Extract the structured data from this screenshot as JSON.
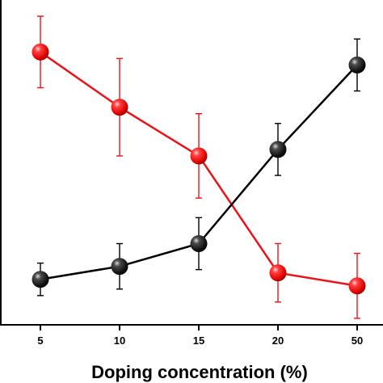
{
  "chart_data": {
    "type": "line",
    "title": "",
    "xlabel": "Doping concentration (%)",
    "ylabel": "",
    "categories": [
      "5",
      "10",
      "15",
      "20",
      "50"
    ],
    "ylim": [
      0,
      10
    ],
    "grid": false,
    "legend": "none",
    "series": [
      {
        "color": "#e8141c",
        "values": [
          8.4,
          6.7,
          5.2,
          1.6,
          1.2
        ],
        "errors": [
          1.1,
          1.5,
          1.3,
          0.9,
          1.0
        ]
      },
      {
        "color": "#000000",
        "values": [
          1.4,
          1.8,
          2.5,
          5.4,
          8.0
        ],
        "errors": [
          0.5,
          0.7,
          0.8,
          0.8,
          0.8
        ]
      }
    ]
  }
}
